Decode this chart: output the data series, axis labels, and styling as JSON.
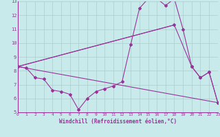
{
  "xlabel": "Windchill (Refroidissement éolien,°C)",
  "bg_color": "#c8eaea",
  "line_color": "#993399",
  "grid_color": "#aacccc",
  "xlim": [
    0,
    23
  ],
  "ylim": [
    5,
    13
  ],
  "xticks": [
    0,
    1,
    2,
    3,
    4,
    5,
    6,
    7,
    8,
    9,
    10,
    11,
    12,
    13,
    14,
    15,
    16,
    17,
    18,
    19,
    20,
    21,
    22,
    23
  ],
  "yticks": [
    5,
    6,
    7,
    8,
    9,
    10,
    11,
    12,
    13
  ],
  "line1_x": [
    0,
    1,
    2,
    3,
    4,
    5,
    6,
    7,
    8,
    9,
    10,
    11,
    12,
    13,
    14,
    15,
    16,
    17,
    18,
    19,
    20,
    21,
    22,
    23
  ],
  "line1_y": [
    8.3,
    8.2,
    7.5,
    7.4,
    6.6,
    6.5,
    6.3,
    5.2,
    6.0,
    6.5,
    6.7,
    6.9,
    7.2,
    9.9,
    12.5,
    13.2,
    13.2,
    12.7,
    13.2,
    11.0,
    8.3,
    7.5,
    7.9,
    5.7
  ],
  "line2_x": [
    0,
    18,
    20,
    21,
    22,
    23
  ],
  "line2_y": [
    8.3,
    11.3,
    8.3,
    7.5,
    7.9,
    5.7
  ],
  "line3_x": [
    0,
    18
  ],
  "line3_y": [
    8.3,
    11.3
  ],
  "line4_x": [
    0,
    23
  ],
  "line4_y": [
    8.3,
    5.7
  ]
}
